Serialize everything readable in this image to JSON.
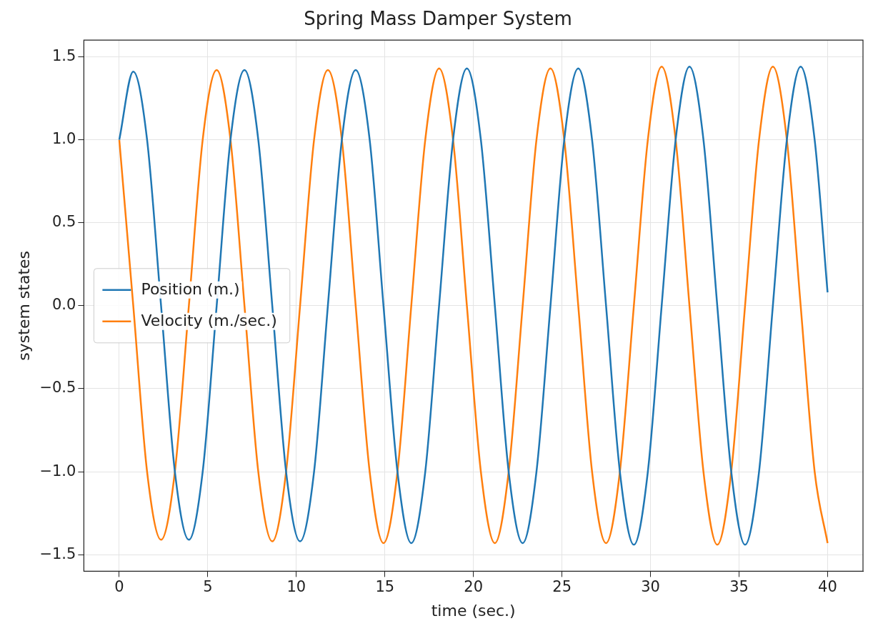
{
  "chart_data": {
    "type": "line",
    "title": "Spring Mass Damper System",
    "xlabel": "time (sec.)",
    "ylabel": "system states",
    "x": [
      0,
      0.79,
      1.57,
      2.36,
      3.14,
      3.93,
      4.71,
      5.5,
      6.28,
      7.07,
      7.85,
      8.64,
      9.42,
      10.21,
      11.0,
      11.78,
      12.57,
      13.35,
      14.14,
      14.92,
      15.71,
      16.49,
      17.28,
      18.06,
      18.85,
      19.63,
      20.42,
      21.21,
      21.99,
      22.78,
      23.56,
      24.35,
      25.13,
      25.92,
      26.7,
      27.49,
      28.27,
      29.06,
      29.85,
      30.63,
      31.42,
      32.2,
      32.99,
      33.77,
      34.56,
      35.34,
      36.13,
      36.91,
      37.7,
      38.48,
      39.27,
      40
    ],
    "series": [
      {
        "name": "Position (m.)",
        "color": "#1f77b4",
        "values": [
          1.0,
          1.41,
          1.0,
          0,
          -1.0,
          -1.41,
          -1.0,
          0,
          1.0,
          1.42,
          1.0,
          0,
          -1.0,
          -1.42,
          -1.0,
          0,
          1.0,
          1.42,
          1.0,
          0,
          -1.0,
          -1.43,
          -1.0,
          0,
          1.0,
          1.43,
          1.0,
          0,
          -1.0,
          -1.43,
          -1.0,
          0,
          1.0,
          1.43,
          1.0,
          0,
          -1.0,
          -1.44,
          -1.0,
          0,
          1.0,
          1.44,
          1.0,
          0,
          -1.0,
          -1.44,
          -1.0,
          0,
          1.0,
          1.44,
          1.0,
          0.08
        ]
      },
      {
        "name": "Velocity (m./sec.)",
        "color": "#ff7f0e",
        "values": [
          1.0,
          0,
          -1.0,
          -1.41,
          -1.0,
          0,
          1.0,
          1.42,
          1.0,
          0,
          -1.0,
          -1.42,
          -1.0,
          0,
          1.0,
          1.42,
          1.0,
          0,
          -1.0,
          -1.43,
          -1.0,
          0,
          1.0,
          1.43,
          1.0,
          0,
          -1.0,
          -1.43,
          -1.0,
          0,
          1.0,
          1.43,
          1.0,
          0,
          -1.0,
          -1.43,
          -1.0,
          0,
          1.0,
          1.44,
          1.0,
          0,
          -1.0,
          -1.44,
          -1.0,
          0,
          1.0,
          1.44,
          1.0,
          0,
          -1.0,
          -1.43
        ]
      }
    ],
    "xlim": [
      -2,
      42
    ],
    "xticks": [
      0,
      5,
      10,
      15,
      20,
      25,
      30,
      35,
      40
    ],
    "ylim": [
      -1.6,
      1.6
    ],
    "yticks": [
      {
        "value": -1.5,
        "label": "−1.5"
      },
      {
        "value": -1.0,
        "label": "−1.0"
      },
      {
        "value": -0.5,
        "label": "−0.5"
      },
      {
        "value": 0,
        "label": "0.0"
      },
      {
        "value": 0.5,
        "label": "0.5"
      },
      {
        "value": 1.0,
        "label": "1.0"
      },
      {
        "value": 1.5,
        "label": "1.5"
      }
    ],
    "grid": true,
    "legend": "center left",
    "marker": "none",
    "line_style": "solid"
  }
}
